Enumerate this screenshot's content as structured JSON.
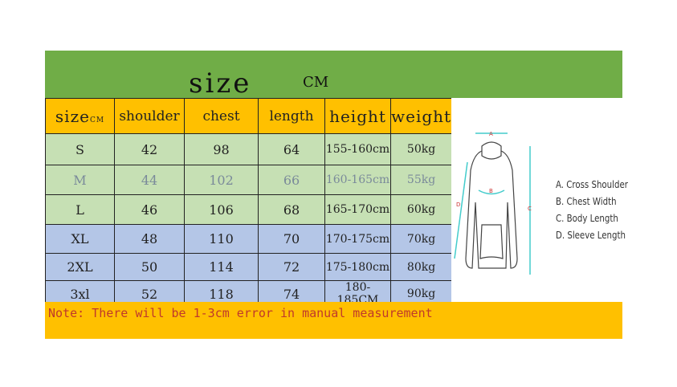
{
  "title": "size",
  "unit": "CM",
  "headers": [
    "size",
    "shoulder",
    "chest",
    "length",
    "height",
    "weight"
  ],
  "header_size_sub": "CM",
  "rows": [
    [
      "S",
      "42",
      "98",
      "64",
      "155-160cm",
      "50kg"
    ],
    [
      "M",
      "44",
      "102",
      "66",
      "160-165cm",
      "55kg"
    ],
    [
      "L",
      "46",
      "106",
      "68",
      "165-170cm",
      "60kg"
    ],
    [
      "XL",
      "48",
      "110",
      "70",
      "170-175cm",
      "70kg"
    ],
    [
      "2XL",
      "50",
      "114",
      "72",
      "175-180cm",
      "80kg"
    ],
    [
      "3xl",
      "52",
      "118",
      "74",
      "180-185CM",
      "90kg"
    ]
  ],
  "note": "Note: There will be 1-3cm error in manual measurement",
  "diagram": {
    "labels": [
      "A",
      "B",
      "C",
      "D"
    ],
    "legend": [
      "A. Cross Shoulder",
      "B. Chest Width",
      "C. Body Length",
      "D. Sleeve Length"
    ]
  },
  "colors": {
    "banner": "#70ad47",
    "header": "#ffc000",
    "green_rows": "#c6e0b4",
    "blue_rows": "#b4c6e7",
    "note_text": "#c0392b"
  }
}
